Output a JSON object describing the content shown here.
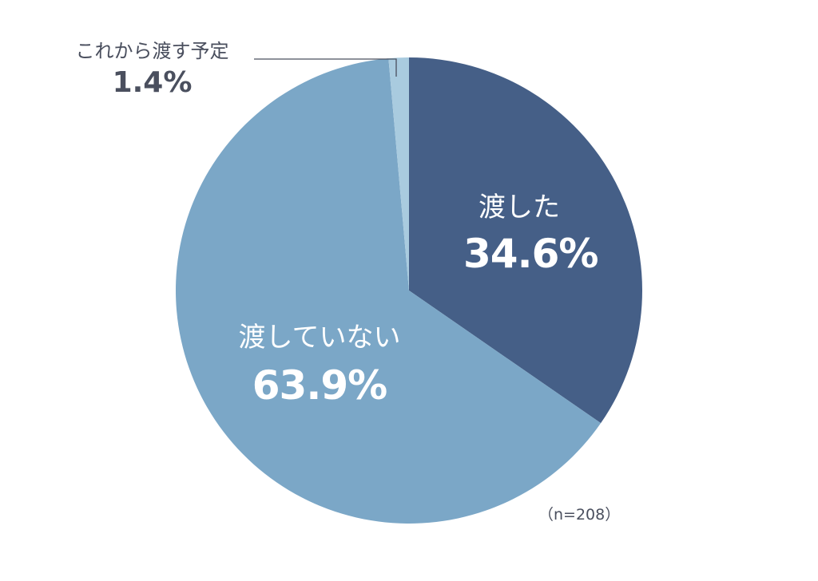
{
  "chart_data": {
    "type": "pie",
    "title": "",
    "categories": [
      "渡した",
      "渡していない",
      "これから渡す予定"
    ],
    "values": [
      34.6,
      63.9,
      1.4
    ],
    "unit": "%",
    "colors": [
      "#455f87",
      "#7ba7c7",
      "#a9cbdf"
    ],
    "start_angle": "12 o'clock",
    "direction": "clockwise",
    "sample_size": "(n=208)"
  },
  "labels": {
    "slice1": {
      "name": "渡した",
      "pct": "34.6%"
    },
    "slice2": {
      "name": "渡していない",
      "pct": "63.9%"
    },
    "slice3": {
      "name": "これから渡す予定",
      "pct": "1.4%"
    }
  },
  "note": "（n=208）"
}
